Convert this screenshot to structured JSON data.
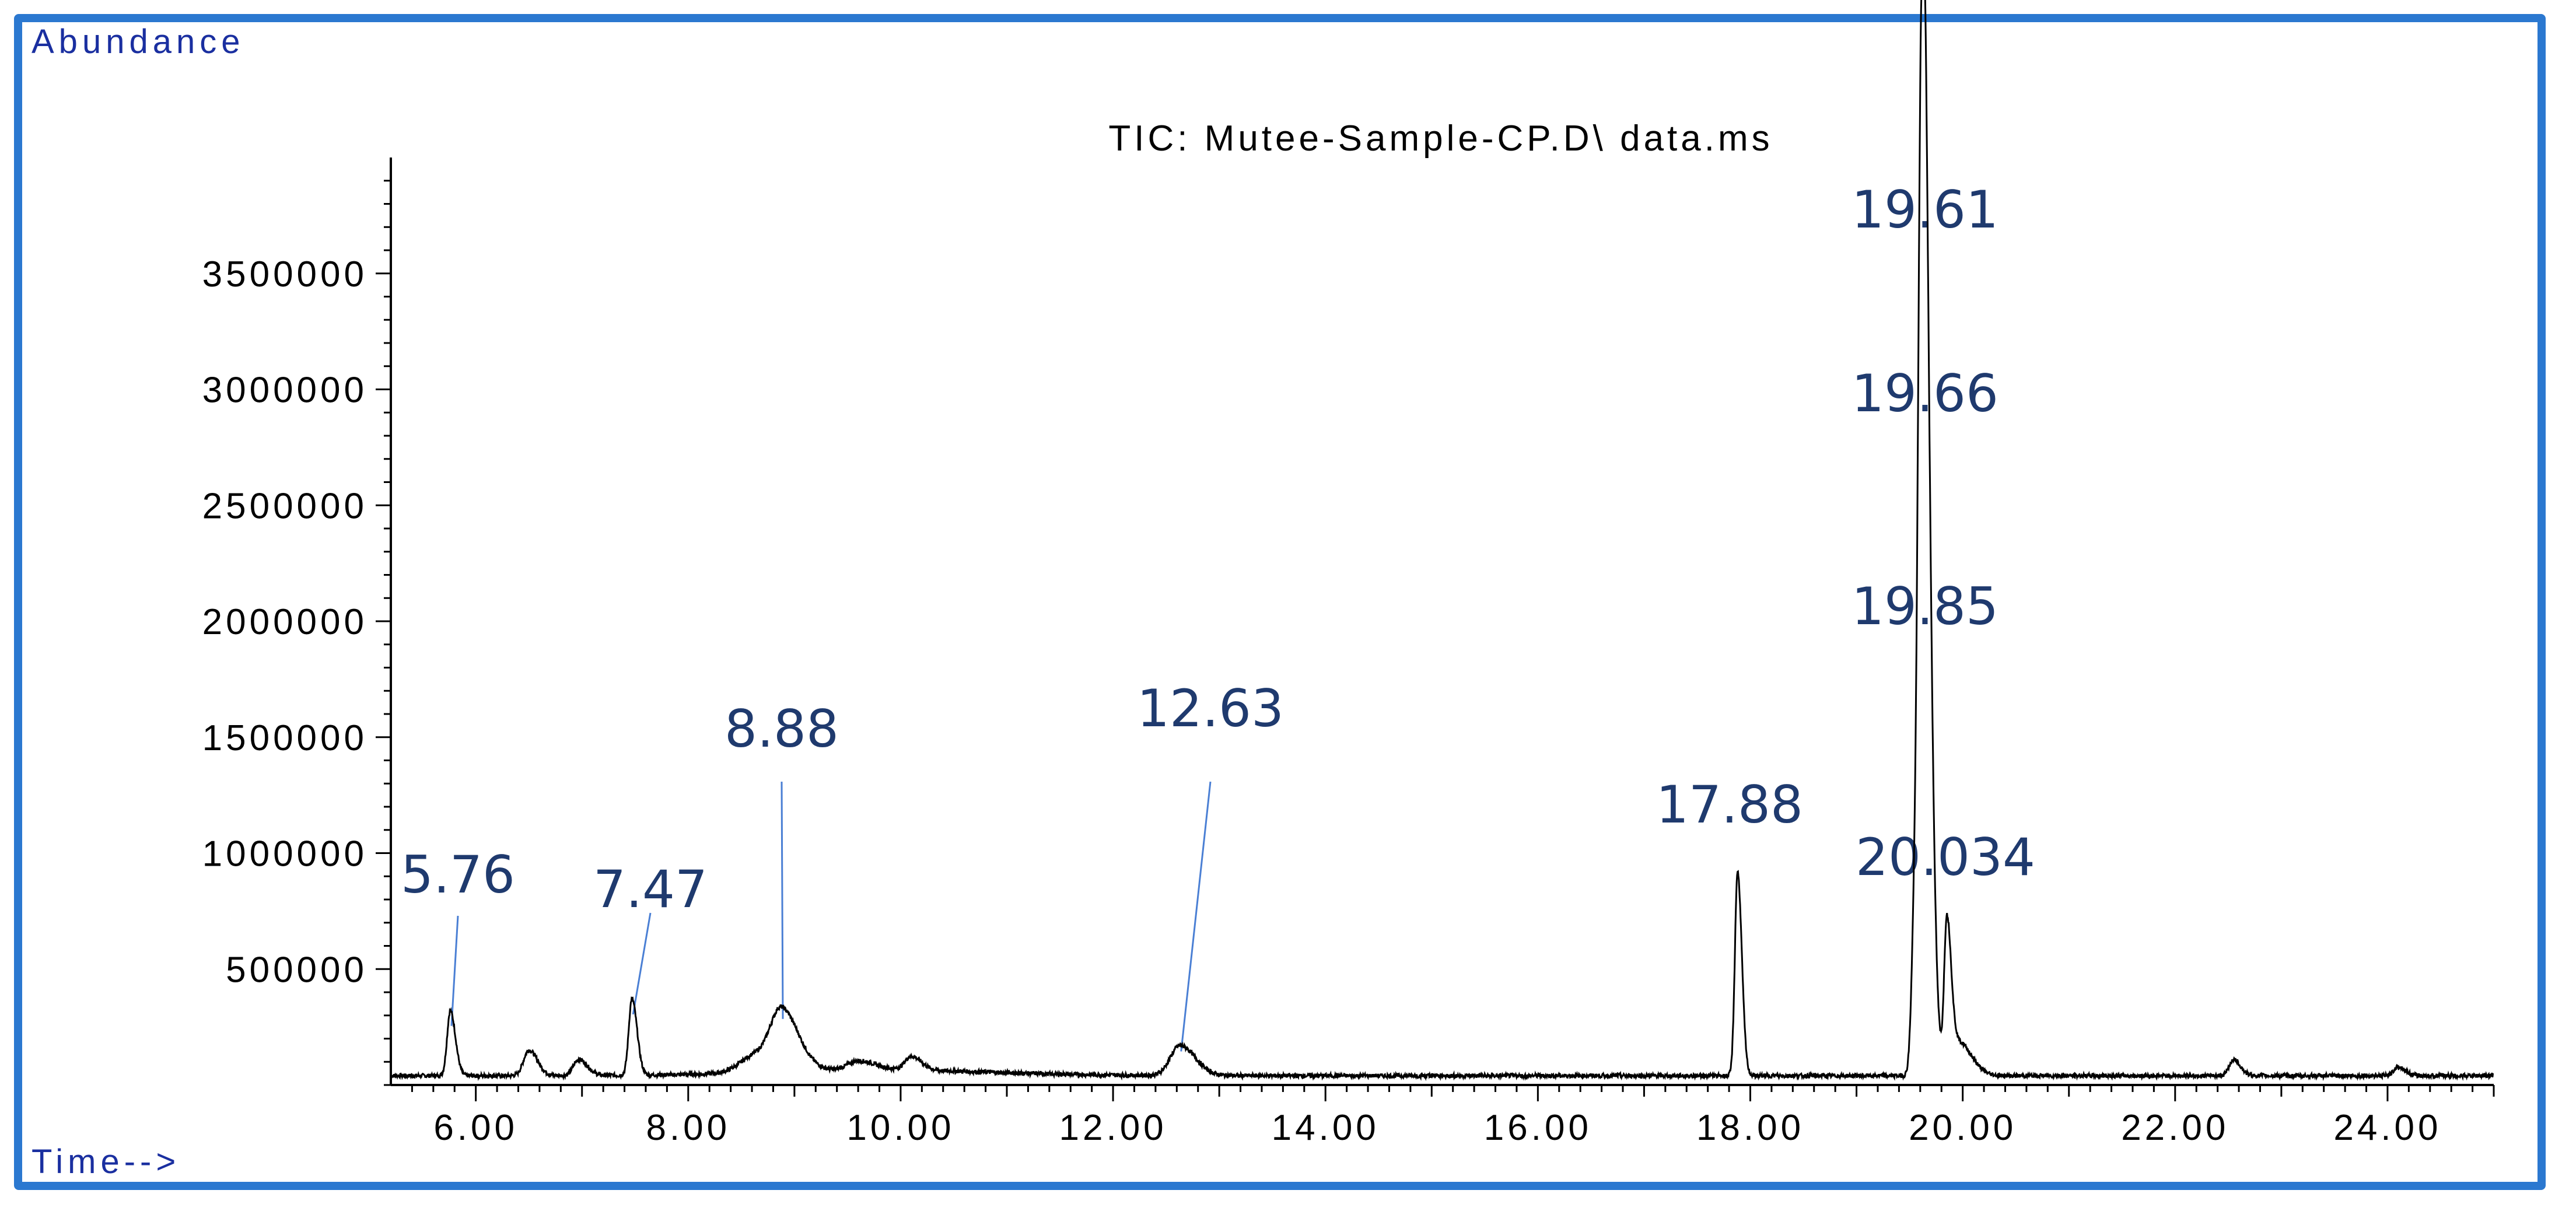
{
  "colors": {
    "frame": "#2b78d0",
    "trace": "#000000",
    "axis": "#000000",
    "annotation_line": "#4a7fd4",
    "annotation_text": "#1f3a6e",
    "corner_label": "#1a2fa0"
  },
  "chart_data": {
    "type": "line",
    "title": "TIC: Mutee-Sample-CP.D\\ data.ms",
    "ylabel": "Abundance",
    "xlabel": "Time-->",
    "xlim": [
      5.2,
      25.0
    ],
    "ylim": [
      0,
      4000000
    ],
    "x_ticks": [
      6,
      8,
      10,
      12,
      14,
      16,
      18,
      20,
      22,
      24
    ],
    "x_tick_labels": [
      "6.00",
      "8.00",
      "10.00",
      "12.00",
      "14.00",
      "16.00",
      "18.00",
      "20.00",
      "22.00",
      "24.00"
    ],
    "y_ticks": [
      500000,
      1000000,
      1500000,
      2000000,
      2500000,
      3000000,
      3500000
    ],
    "y_tick_labels": [
      "500000",
      "1000000",
      "1500000",
      "2000000",
      "2500000",
      "3000000",
      "3500000"
    ],
    "grid": false,
    "legend": "none",
    "baseline": 40000,
    "series": [
      {
        "peaks": [
          {
            "x": 5.76,
            "y": 280000,
            "w": 0.03
          },
          {
            "x": 6.5,
            "y": 110000,
            "w": 0.05
          },
          {
            "x": 6.97,
            "y": 70000,
            "w": 0.05
          },
          {
            "x": 7.47,
            "y": 330000,
            "w": 0.03
          },
          {
            "x": 8.88,
            "y": 230000,
            "w": 0.1
          },
          {
            "x": 8.65,
            "y": 80000,
            "w": 0.15
          },
          {
            "x": 9.6,
            "y": 40000,
            "w": 0.1
          },
          {
            "x": 10.1,
            "y": 60000,
            "w": 0.06
          },
          {
            "x": 12.63,
            "y": 130000,
            "w": 0.09
          },
          {
            "x": 17.88,
            "y": 880000,
            "w": 0.025
          },
          {
            "x": 19.55,
            "y": 700000,
            "w": 0.03
          },
          {
            "x": 19.61,
            "y": 3600000,
            "w": 0.03
          },
          {
            "x": 19.66,
            "y": 2000000,
            "w": 0.035
          },
          {
            "x": 19.85,
            "y": 620000,
            "w": 0.025
          },
          {
            "x": 19.95,
            "y": 150000,
            "w": 0.08
          },
          {
            "x": 22.55,
            "y": 70000,
            "w": 0.04
          },
          {
            "x": 24.1,
            "y": 40000,
            "w": 0.04
          }
        ]
      }
    ],
    "annotations": [
      {
        "label": "5.76",
        "x": 5.76,
        "y": 280000,
        "line": true
      },
      {
        "label": "7.47",
        "x": 7.47,
        "y": 330000,
        "line": true
      },
      {
        "label": "8.88",
        "x": 8.88,
        "y": 310000,
        "line": true
      },
      {
        "label": "12.63",
        "x": 12.63,
        "y": 170000,
        "line": true
      },
      {
        "label": "17.88",
        "x": 17.88,
        "y": 920000,
        "line": false
      },
      {
        "label": "19.61",
        "x": 19.61,
        "y": 3600000,
        "line": false
      },
      {
        "label": "19.66",
        "x": 19.66,
        "y": 2000000,
        "line": false
      },
      {
        "label": "19.85",
        "x": 19.85,
        "y": 620000,
        "line": false
      },
      {
        "label": "20.034",
        "x": 20.034,
        "y": 580000,
        "line": false
      }
    ]
  }
}
